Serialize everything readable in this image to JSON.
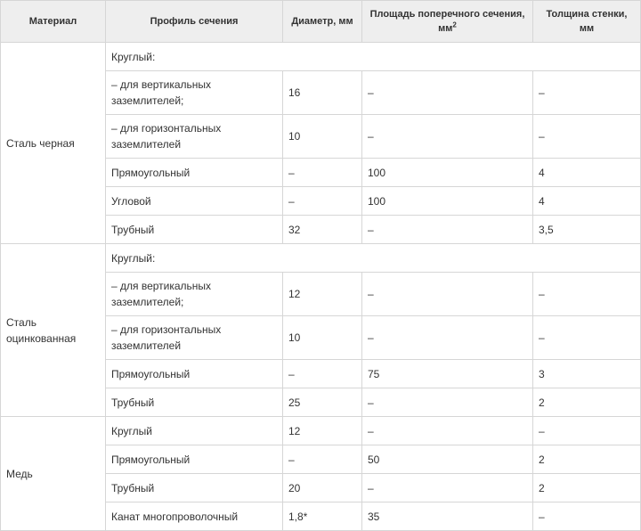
{
  "table": {
    "headers": {
      "material": "Материал",
      "profile": "Профиль сечения",
      "diameter": "Диаметр, мм",
      "area": "Площадь поперечного сечения, мм",
      "area_sup": "2",
      "wall": "Толщина стенки, мм"
    },
    "groups": [
      {
        "material": "Сталь черная",
        "round_label": "Круглый:",
        "rows": [
          {
            "profile": "– для вертикальных заземлителей;",
            "diameter": "16",
            "area": "–",
            "wall": "–"
          },
          {
            "profile": "– для горизонтальных заземлителей",
            "diameter": "10",
            "area": "–",
            "wall": "–"
          },
          {
            "profile": "Прямоугольный",
            "diameter": "–",
            "area": "100",
            "wall": "4"
          },
          {
            "profile": "Угловой",
            "diameter": "–",
            "area": "100",
            "wall": "4"
          },
          {
            "profile": "Трубный",
            "diameter": "32",
            "area": "–",
            "wall": "3,5"
          }
        ]
      },
      {
        "material": "Сталь оцинкованная",
        "round_label": "Круглый:",
        "rows": [
          {
            "profile": "– для вертикальных заземлителей;",
            "diameter": "12",
            "area": "–",
            "wall": "–"
          },
          {
            "profile": "– для горизонтальных заземлителей",
            "diameter": "10",
            "area": "–",
            "wall": "–"
          },
          {
            "profile": "Прямоугольный",
            "diameter": "–",
            "area": "75",
            "wall": "3"
          },
          {
            "profile": "Трубный",
            "diameter": "25",
            "area": "–",
            "wall": "2"
          }
        ]
      },
      {
        "material": "Медь",
        "rows": [
          {
            "profile": "Круглый",
            "diameter": "12",
            "area": "–",
            "wall": "–"
          },
          {
            "profile": "Прямоугольный",
            "diameter": "–",
            "area": "50",
            "wall": "2"
          },
          {
            "profile": "Трубный",
            "diameter": "20",
            "area": "–",
            "wall": "2"
          },
          {
            "profile": "Канат многопроволочный",
            "diameter": "1,8*",
            "area": "35",
            "wall": "–"
          }
        ]
      }
    ]
  }
}
